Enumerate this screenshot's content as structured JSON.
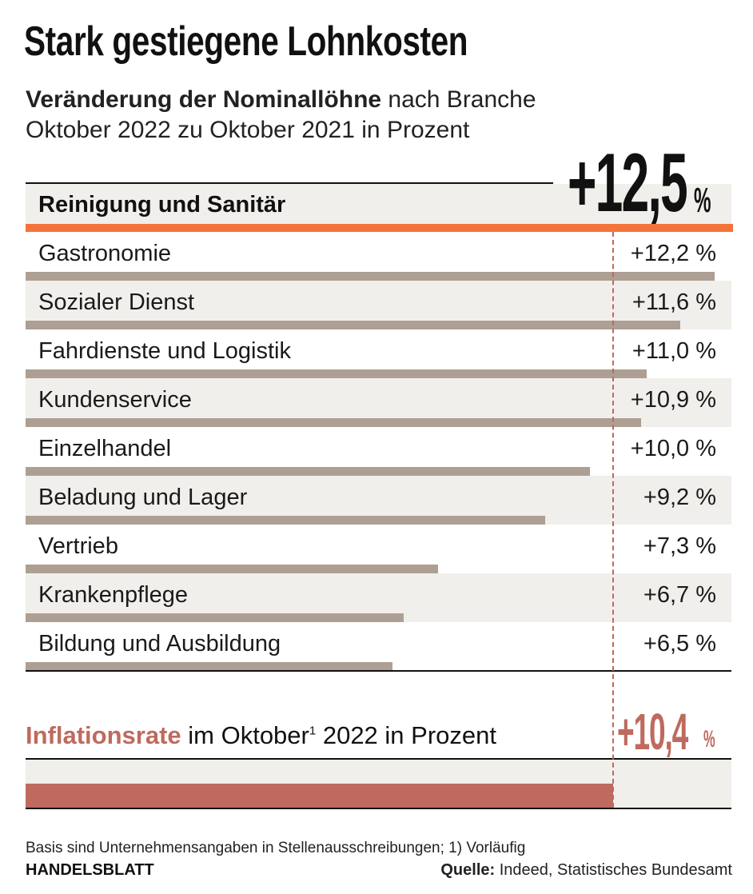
{
  "chart_data": {
    "type": "bar",
    "orientation": "horizontal",
    "title": "Stark gestiegene Lohnkosten",
    "subtitle_bold": "Veränderung der Nominallöhne",
    "subtitle_rest": "nach Branche",
    "subtitle_line2": "Oktober 2022 zu Oktober 2021 in Prozent",
    "highlight": {
      "label": "Reinigung und Sanitär",
      "value": 12.5,
      "value_label": "+12,5",
      "unit": "%"
    },
    "categories": [
      "Gastronomie",
      "Sozialer Dienst",
      "Fahrdienste und Logistik",
      "Kundenservice",
      "Einzelhandel",
      "Beladung und Lager",
      "Vertrieb",
      "Krankenpflege",
      "Bildung und Ausbildung"
    ],
    "values": [
      12.2,
      11.6,
      11.0,
      10.9,
      10.0,
      9.2,
      7.3,
      6.7,
      6.5
    ],
    "value_labels": [
      "+12,2 %",
      "+11,6 %",
      "+11,0 %",
      "+10,9 %",
      "+10,0 %",
      "+9,2 %",
      "+7,3 %",
      "+6,7 %",
      "+6,5 %"
    ],
    "xlim": [
      0,
      12.5
    ],
    "reference": {
      "label_bold": "Inflationsrate",
      "label_rest": " im Oktober",
      "label_sup": "1",
      "label_end": " 2022 in Prozent",
      "value": 10.4,
      "value_label": "+10,4",
      "unit": "%"
    },
    "colors": {
      "highlight": "#f4733a",
      "bars": "#ad9f93",
      "inflation": "#bf6a5e",
      "row_alt": "#f0efeb"
    }
  },
  "footer": {
    "note": "Basis sind Unternehmensangaben in Stellenausschreibungen; 1) Vorläufig",
    "brand": "HANDELSBLATT",
    "source_label": "Quelle:",
    "source_text": " Indeed, Statistisches Bundesamt"
  }
}
